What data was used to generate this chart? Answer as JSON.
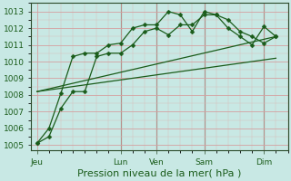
{
  "background_color": "#c8e8e4",
  "grid_color_major": "#d4a0a0",
  "grid_color_minor": "#dbb8b8",
  "line_color": "#1a5c1a",
  "ylim": [
    1004.7,
    1013.5
  ],
  "yticks": [
    1005,
    1006,
    1007,
    1008,
    1009,
    1010,
    1011,
    1012,
    1013
  ],
  "xlabel": "Pression niveau de la mer( hPa )",
  "xlabel_color": "#1a5c1a",
  "xlabel_fontsize": 8,
  "tick_label_color": "#1a5c1a",
  "tick_label_fontsize": 6.5,
  "day_labels": [
    "Jeu",
    "Lun",
    "Ven",
    "Sam",
    "Dim"
  ],
  "day_positions": [
    0,
    7,
    10,
    14,
    19
  ],
  "vline_positions": [
    7,
    10,
    14,
    19
  ],
  "xlim": [
    -0.5,
    21
  ],
  "series_with_markers": [
    {
      "x": [
        0,
        1,
        2,
        3,
        4,
        5,
        6,
        7,
        8,
        9,
        10,
        11,
        12,
        13,
        14,
        15,
        16,
        17,
        18,
        19,
        20
      ],
      "y": [
        1005.1,
        1005.5,
        1007.2,
        1008.2,
        1008.2,
        1010.3,
        1010.5,
        1010.5,
        1011.0,
        1011.8,
        1012.0,
        1011.6,
        1012.2,
        1012.2,
        1012.8,
        1012.8,
        1012.5,
        1011.8,
        1011.5,
        1011.1,
        1011.5
      ],
      "has_markers": true
    },
    {
      "x": [
        0,
        1,
        2,
        3,
        4,
        5,
        6,
        7,
        8,
        9,
        10,
        11,
        12,
        13,
        14,
        15,
        16,
        17,
        18,
        19,
        20
      ],
      "y": [
        1005.1,
        1006.0,
        1008.1,
        1010.3,
        1010.5,
        1010.5,
        1011.0,
        1011.1,
        1012.0,
        1012.2,
        1012.2,
        1013.0,
        1012.8,
        1011.8,
        1013.0,
        1012.8,
        1012.0,
        1011.5,
        1011.0,
        1012.1,
        1011.5
      ],
      "has_markers": true
    },
    {
      "x": [
        0,
        20
      ],
      "y": [
        1008.2,
        1011.5
      ],
      "has_markers": false
    },
    {
      "x": [
        0,
        20
      ],
      "y": [
        1008.2,
        1010.2
      ],
      "has_markers": false
    }
  ]
}
